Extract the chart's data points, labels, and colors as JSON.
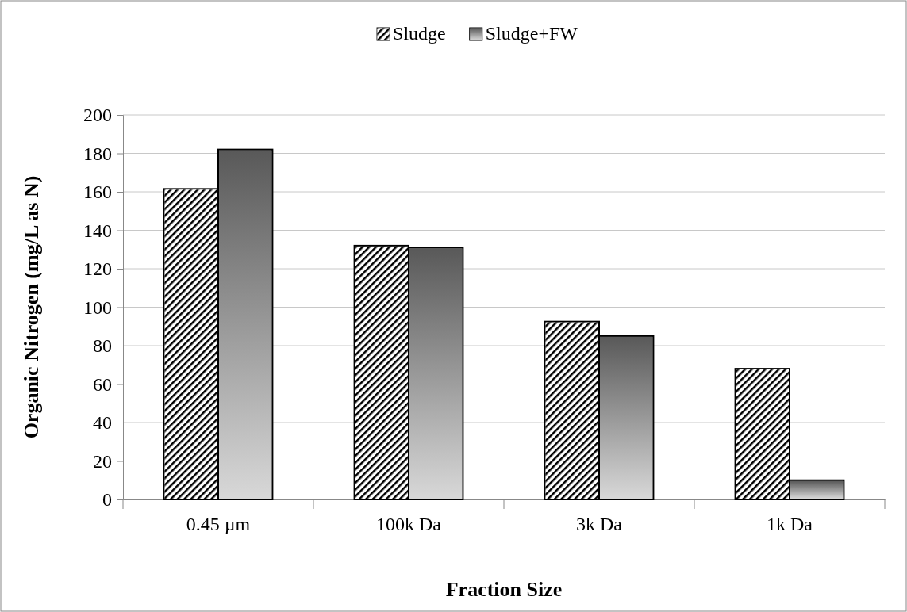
{
  "chart_data": {
    "type": "bar",
    "xlabel": "Fraction Size",
    "ylabel": "Organic Nitrogen (mg/L as N)",
    "categories": [
      "0.45 µm",
      "100k Da",
      "3k Da",
      "1k Da"
    ],
    "series": [
      {
        "name": "Sludge",
        "color": "#ffffff",
        "values": [
          161.5,
          132,
          92.5,
          68
        ]
      },
      {
        "name": "Sludge+FW",
        "color": "#888888",
        "values": [
          182,
          131,
          85,
          10
        ]
      }
    ],
    "ylim": [
      0,
      200
    ],
    "yticks": [
      0,
      20,
      40,
      60,
      80,
      100,
      120,
      140,
      160,
      180,
      200
    ],
    "grid": "y",
    "legend": "top"
  }
}
